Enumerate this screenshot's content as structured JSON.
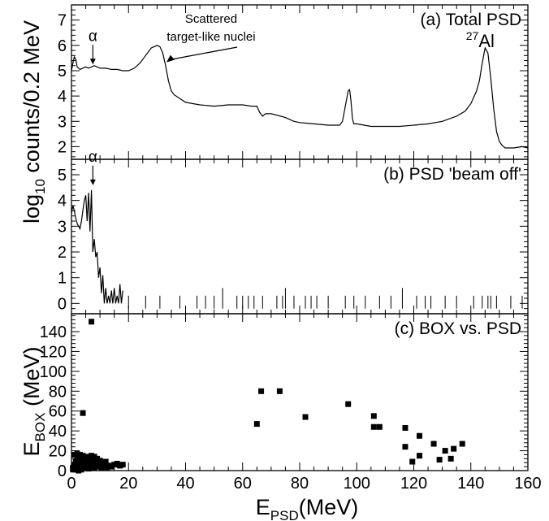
{
  "chart_data": [
    {
      "panel": "a",
      "type": "line",
      "title": "(a) Total PSD",
      "ylabel": "log10 counts/0.2 MeV",
      "xlabel": "EPSD(MeV)",
      "xlim": [
        0,
        160
      ],
      "ylim": [
        1.5,
        7.6
      ],
      "yticks": [
        2,
        3,
        4,
        5,
        6,
        7
      ],
      "annotations": [
        {
          "text": "α",
          "x": 7.5,
          "y": 5.15
        },
        {
          "text": "Scattered",
          "x": 33,
          "y": 5.3
        },
        {
          "text": "target-like nuclei",
          "x": 33,
          "y": 5.3
        },
        {
          "label": "27Al",
          "sup": "27",
          "base": "Al",
          "x": 145,
          "y": 5.9
        }
      ],
      "series": [
        {
          "x": [
            0,
            0.5,
            1,
            1.5,
            2,
            2.5,
            3,
            4,
            5,
            6,
            7,
            8,
            9,
            10,
            12,
            14,
            16,
            18,
            20,
            22,
            24,
            26,
            27,
            28,
            29,
            30,
            31,
            32,
            33,
            34,
            35,
            36,
            38,
            40,
            45,
            50,
            55,
            60,
            63,
            65,
            66,
            67,
            68,
            70,
            75,
            78,
            80,
            85,
            90,
            94,
            95,
            96,
            97,
            97.5,
            98,
            98.5,
            99,
            100,
            105,
            110,
            115,
            120,
            125,
            130,
            135,
            138,
            140,
            142,
            143,
            144,
            145,
            146,
            147,
            148,
            149,
            150,
            151,
            152,
            155,
            158,
            160
          ],
          "y": [
            5.0,
            5.3,
            5.55,
            5.45,
            5.15,
            5.1,
            5.05,
            5.1,
            5.15,
            5.1,
            5.15,
            5.2,
            5.15,
            5.1,
            5.1,
            5.05,
            5.05,
            5.0,
            5.0,
            5.1,
            5.3,
            5.6,
            5.75,
            5.9,
            5.95,
            6.0,
            5.95,
            5.7,
            5.2,
            4.6,
            4.2,
            4.05,
            3.9,
            3.75,
            3.65,
            3.6,
            3.65,
            3.65,
            3.6,
            3.6,
            3.35,
            3.2,
            3.3,
            3.3,
            3.15,
            3.0,
            2.95,
            2.9,
            2.85,
            2.85,
            3.0,
            3.6,
            4.2,
            4.25,
            3.8,
            3.1,
            2.9,
            2.9,
            2.8,
            2.8,
            2.8,
            2.85,
            2.9,
            3.0,
            3.2,
            3.4,
            3.7,
            4.2,
            4.6,
            5.3,
            5.9,
            5.7,
            4.7,
            3.5,
            2.6,
            2.2,
            2.05,
            1.95,
            1.95,
            2.0,
            1.95
          ]
        }
      ]
    },
    {
      "panel": "b",
      "type": "line",
      "title": "(b) PSD 'beam off'",
      "xlim": [
        0,
        160
      ],
      "ylim": [
        -0.4,
        5.6
      ],
      "yticks": [
        0,
        1,
        2,
        3,
        4,
        5
      ],
      "annotations": [
        {
          "text": "α",
          "x": 7.5,
          "y": 4.5
        }
      ],
      "series": [
        {
          "x": [
            0,
            0.5,
            1,
            1.5,
            2,
            2.5,
            3,
            3.5,
            4,
            4.5,
            5,
            5.5,
            6,
            6.5,
            7,
            7.5,
            8,
            8.5,
            9,
            9.5,
            10,
            10.5,
            11,
            11.5,
            12,
            12.5,
            13,
            13.5,
            14,
            14.5,
            15,
            15.5,
            16,
            16.5,
            17,
            17.5,
            18
          ],
          "y": [
            3.5,
            3.8,
            3.6,
            3.3,
            3.1,
            3.0,
            2.9,
            3.2,
            3.6,
            4.0,
            4.2,
            3.2,
            4.3,
            2.8,
            4.4,
            2.0,
            2.5,
            1.8,
            2.0,
            1.0,
            1.4,
            0.4,
            1.1,
            0.0,
            0.6,
            0.0,
            0.3,
            0.0,
            0.5,
            0.0,
            0.6,
            0.0,
            0.3,
            0.0,
            0.75,
            0.0,
            0.5
          ]
        }
      ],
      "spikes_x": [
        20,
        26,
        31,
        38,
        44,
        47,
        50,
        53,
        58,
        60,
        62,
        64,
        67,
        72,
        74,
        75,
        78,
        82,
        84,
        86,
        90,
        96,
        99,
        103,
        108,
        112,
        116,
        121,
        124,
        126,
        131,
        135,
        141,
        144,
        146,
        147,
        149,
        154,
        158
      ],
      "spikes_y": [
        0.3,
        0.3,
        0.3,
        0.3,
        0.3,
        0.3,
        0.3,
        0.6,
        0.3,
        0.3,
        0.3,
        0.3,
        0.3,
        0.3,
        0.3,
        0.6,
        0.3,
        0.3,
        0.3,
        0.3,
        0.3,
        0.3,
        0.3,
        0.3,
        0.3,
        0.3,
        0.6,
        0.3,
        0.3,
        0.3,
        0.3,
        0.3,
        0.3,
        0.3,
        0.3,
        0.3,
        0.3,
        0.3,
        0.3
      ]
    },
    {
      "panel": "c",
      "type": "scatter",
      "title": "(c) BOX vs. PSD",
      "ylabel": "EBOX (MeV)",
      "xlabel": "EPSD(MeV)",
      "xlim": [
        0,
        160
      ],
      "ylim": [
        0,
        158
      ],
      "yticks": [
        0,
        20,
        40,
        60,
        80,
        100,
        120,
        140
      ],
      "xticks": [
        0,
        20,
        40,
        60,
        80,
        100,
        120,
        140,
        160
      ],
      "points": {
        "x": [
          7,
          4,
          65,
          66.5,
          73,
          82,
          97,
          106,
          106,
          108,
          117,
          117,
          119.5,
          122,
          122,
          127,
          129,
          131,
          133,
          134,
          137
        ],
        "y": [
          150,
          58,
          47,
          80,
          80,
          54,
          67,
          55,
          44,
          44,
          43,
          24,
          9,
          35,
          15,
          27,
          11,
          20,
          12,
          22,
          27
        ]
      },
      "cluster_x": [
        0.5,
        1,
        1.5,
        1.5,
        2,
        2,
        2.5,
        2.5,
        3,
        3,
        3.5,
        3.5,
        4,
        4,
        4.5,
        5,
        5,
        5.5,
        6,
        6,
        6.5,
        7,
        7,
        7.5,
        8,
        8,
        8.5,
        9,
        9.5,
        10,
        10.5,
        11,
        11.5,
        12,
        12.5,
        13,
        14,
        15,
        16,
        17,
        18,
        1,
        2,
        3,
        4,
        5,
        6,
        7,
        8,
        9,
        10,
        11,
        12,
        0.5,
        1.5,
        2.5,
        3.5
      ],
      "cluster_y": [
        3,
        6,
        9,
        2,
        14,
        5,
        11,
        3,
        8,
        2,
        12,
        6,
        4,
        10,
        7,
        3,
        9,
        5,
        12,
        2,
        6,
        4,
        10,
        7,
        3,
        13,
        6,
        4,
        8,
        5,
        3,
        7,
        4,
        6,
        3,
        5,
        4,
        6,
        7,
        5,
        6,
        16,
        17,
        16,
        15,
        14,
        13,
        15,
        14,
        12,
        10,
        8,
        9,
        1,
        1,
        0,
        1
      ]
    }
  ]
}
